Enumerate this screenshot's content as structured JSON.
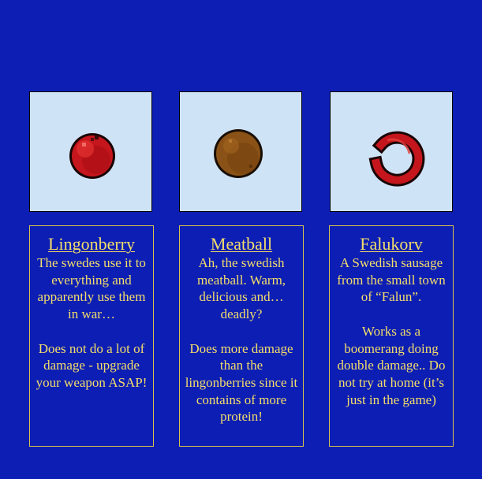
{
  "colors": {
    "background": "#0d1eb4",
    "card_image_bg": "#cfe3f6",
    "text": "#f3de6a",
    "border": "#d9c24a"
  },
  "cards": [
    {
      "title": "Lingonberry",
      "icon": "lingonberry-icon",
      "body": "The swedes use it to everything and apparently use them in war…\n\nDoes not do a lot of damage - upgrade your weapon ASAP!"
    },
    {
      "title": "Meatball",
      "icon": "meatball-icon",
      "body": "Ah, the swedish meatball. Warm, delicious and… deadly?\n\nDoes more damage than the lingonberries since it contains of more protein!"
    },
    {
      "title": "Falukorv",
      "icon": "falukorv-icon",
      "body": "A Swedish sausage from the small town of “Falun”.\n\nWorks as a boomerang doing double damage.. Do not try at home (it’s just in the game)"
    }
  ]
}
